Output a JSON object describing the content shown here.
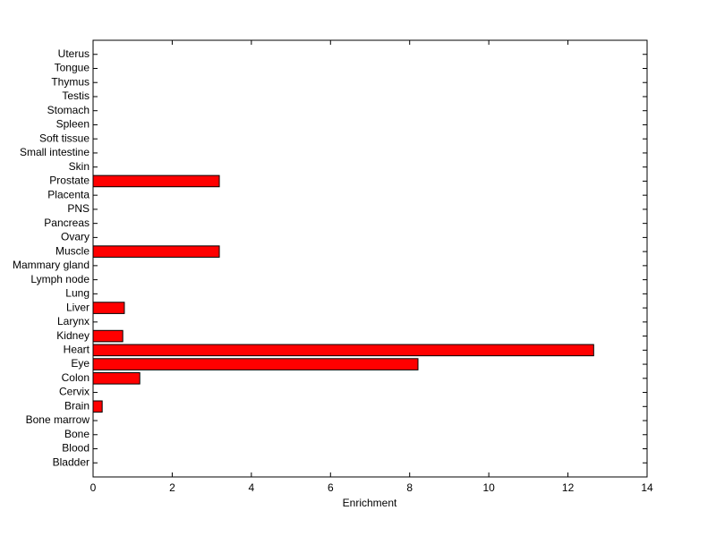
{
  "chart_data": {
    "type": "barh",
    "x_label": "Enrichment",
    "categories": [
      "Bladder",
      "Blood",
      "Bone",
      "Bone marrow",
      "Brain",
      "Cervix",
      "Colon",
      "Eye",
      "Heart",
      "Kidney",
      "Larynx",
      "Liver",
      "Lung",
      "Lymph node",
      "Mammary gland",
      "Muscle",
      "Ovary",
      "Pancreas",
      "PNS",
      "Placenta",
      "Prostate",
      "Skin",
      "Small intestine",
      "Soft tissue",
      "Spleen",
      "Stomach",
      "Testis",
      "Thymus",
      "Tongue",
      "Uterus"
    ],
    "values": [
      0,
      0,
      0,
      0,
      0.23,
      0,
      1.18,
      8.21,
      12.65,
      0.75,
      0,
      0.79,
      0,
      0,
      0,
      3.19,
      0,
      0,
      0,
      0,
      3.19,
      0,
      0,
      0,
      0,
      0,
      0,
      0,
      0,
      0
    ],
    "color": "#ff0000",
    "xlim": [
      0,
      14
    ],
    "xticks": [
      0,
      2,
      4,
      6,
      8,
      10,
      12,
      14
    ],
    "grid": false
  }
}
